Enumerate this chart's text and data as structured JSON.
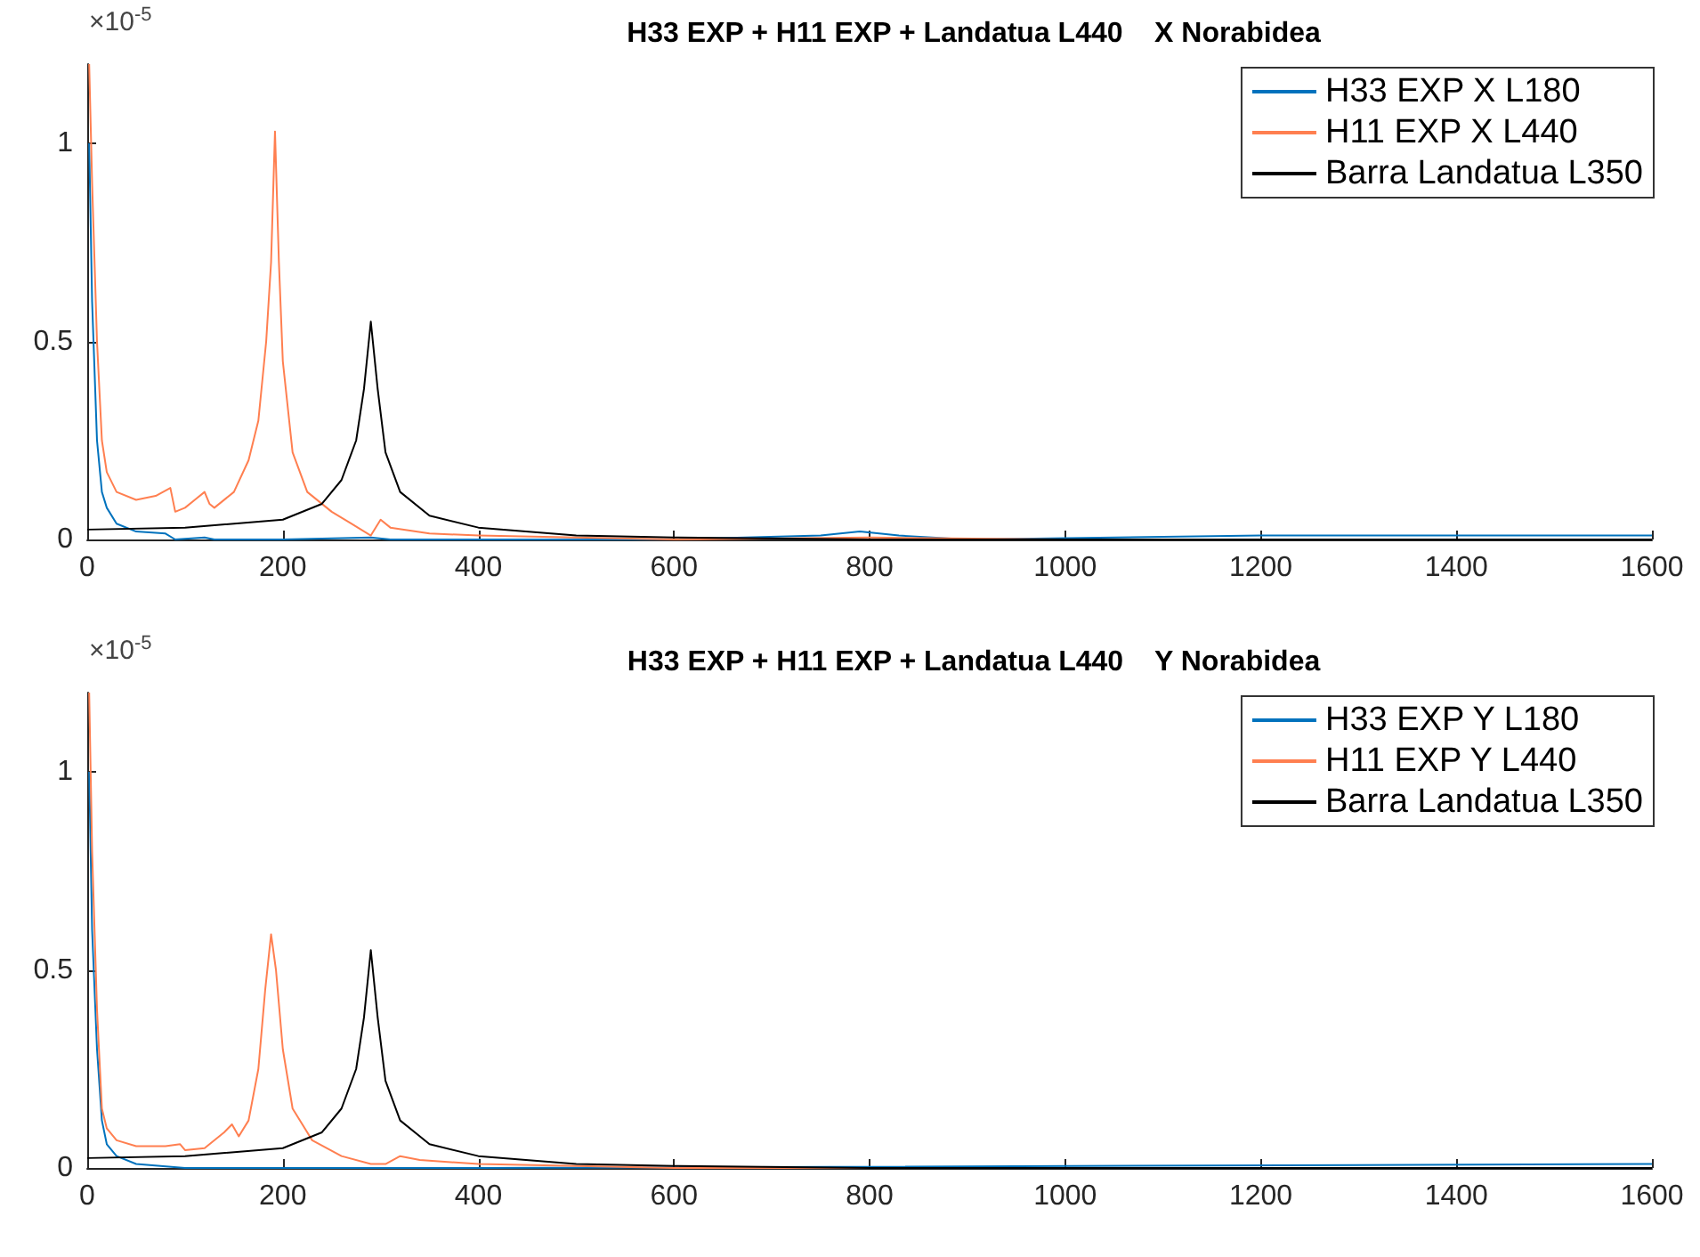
{
  "chart_data": [
    {
      "type": "line",
      "title": "H33 EXP + H11 EXP + Landatua L440    X Norabidea",
      "annotations": [
        "×10$^{-5}$"
      ],
      "xlim": [
        0,
        1600
      ],
      "xticks": [
        0,
        200,
        400,
        600,
        800,
        1000,
        1200,
        1400,
        1600
      ],
      "ylim": [
        0,
        1.2
      ],
      "yticks": [
        0,
        0.5,
        1
      ],
      "grid": false,
      "legend": "top right",
      "marker": "none",
      "line_style": "solid",
      "series": [
        {
          "name": "H33 EXP X L180",
          "color": "#0072bd",
          "x": [
            2,
            5,
            10,
            15,
            20,
            30,
            50,
            80,
            90,
            120,
            130,
            200,
            290,
            310,
            600,
            750,
            790,
            830,
            900,
            1200,
            1600
          ],
          "values": [
            1.0,
            0.6,
            0.25,
            0.12,
            0.08,
            0.04,
            0.02,
            0.015,
            0.0,
            0.005,
            0.0,
            0.0,
            0.005,
            0.0,
            0.0,
            0.01,
            0.02,
            0.01,
            0.0,
            0.01,
            0.01
          ]
        },
        {
          "name": "H11 EXP X L440",
          "color": "#ff7f50",
          "x": [
            2,
            5,
            10,
            15,
            20,
            30,
            50,
            70,
            85,
            90,
            100,
            110,
            120,
            125,
            130,
            150,
            165,
            175,
            183,
            188,
            192,
            196,
            200,
            210,
            225,
            250,
            270,
            290,
            300,
            310,
            350,
            400,
            500,
            600,
            800,
            1000,
            1600
          ],
          "values": [
            1.2,
            0.9,
            0.5,
            0.25,
            0.17,
            0.12,
            0.1,
            0.11,
            0.13,
            0.07,
            0.08,
            0.1,
            0.12,
            0.09,
            0.08,
            0.12,
            0.2,
            0.3,
            0.5,
            0.7,
            1.03,
            0.7,
            0.45,
            0.22,
            0.12,
            0.07,
            0.04,
            0.01,
            0.05,
            0.03,
            0.015,
            0.01,
            0.005,
            0.0,
            0.005,
            0.0,
            0.0
          ]
        },
        {
          "name": "Barra Landatua L350",
          "color": "#000000",
          "x": [
            0,
            100,
            200,
            240,
            260,
            275,
            283,
            290,
            297,
            305,
            320,
            350,
            400,
            500,
            600,
            800,
            1200,
            1600
          ],
          "values": [
            0.025,
            0.03,
            0.05,
            0.09,
            0.15,
            0.25,
            0.38,
            0.55,
            0.38,
            0.22,
            0.12,
            0.06,
            0.03,
            0.01,
            0.005,
            0.0,
            0.0,
            0.0
          ]
        }
      ]
    },
    {
      "type": "line",
      "title": "H33 EXP + H11 EXP + Landatua L440    Y Norabidea",
      "annotations": [
        "×10$^{-5}$"
      ],
      "xlim": [
        0,
        1600
      ],
      "xticks": [
        0,
        200,
        400,
        600,
        800,
        1000,
        1200,
        1400,
        1600
      ],
      "ylim": [
        0,
        1.2
      ],
      "yticks": [
        0,
        0.5,
        1
      ],
      "grid": false,
      "legend": "top right",
      "marker": "none",
      "line_style": "solid",
      "series": [
        {
          "name": "H33 EXP Y L180",
          "color": "#0072bd",
          "x": [
            2,
            5,
            10,
            15,
            20,
            30,
            50,
            100,
            200,
            400,
            1600
          ],
          "values": [
            1.0,
            0.6,
            0.3,
            0.12,
            0.06,
            0.03,
            0.01,
            0.0,
            0.0,
            0.0,
            0.01
          ]
        },
        {
          "name": "H11 EXP Y L440",
          "color": "#ff7f50",
          "x": [
            2,
            5,
            10,
            15,
            20,
            30,
            50,
            80,
            95,
            100,
            120,
            140,
            148,
            155,
            165,
            175,
            182,
            188,
            193,
            200,
            210,
            230,
            260,
            290,
            305,
            320,
            340,
            400,
            600,
            1600
          ],
          "values": [
            1.2,
            0.8,
            0.4,
            0.15,
            0.1,
            0.07,
            0.055,
            0.055,
            0.06,
            0.045,
            0.05,
            0.09,
            0.11,
            0.08,
            0.12,
            0.25,
            0.45,
            0.59,
            0.5,
            0.3,
            0.15,
            0.07,
            0.03,
            0.01,
            0.01,
            0.03,
            0.02,
            0.01,
            0.0,
            0.0
          ]
        },
        {
          "name": "Barra Landatua L350",
          "color": "#000000",
          "x": [
            0,
            100,
            200,
            240,
            260,
            275,
            283,
            290,
            297,
            305,
            320,
            350,
            400,
            500,
            600,
            800,
            1200,
            1600
          ],
          "values": [
            0.025,
            0.03,
            0.05,
            0.09,
            0.15,
            0.25,
            0.38,
            0.55,
            0.38,
            0.22,
            0.12,
            0.06,
            0.03,
            0.01,
            0.005,
            0.0,
            0.0,
            0.0
          ]
        }
      ]
    }
  ]
}
